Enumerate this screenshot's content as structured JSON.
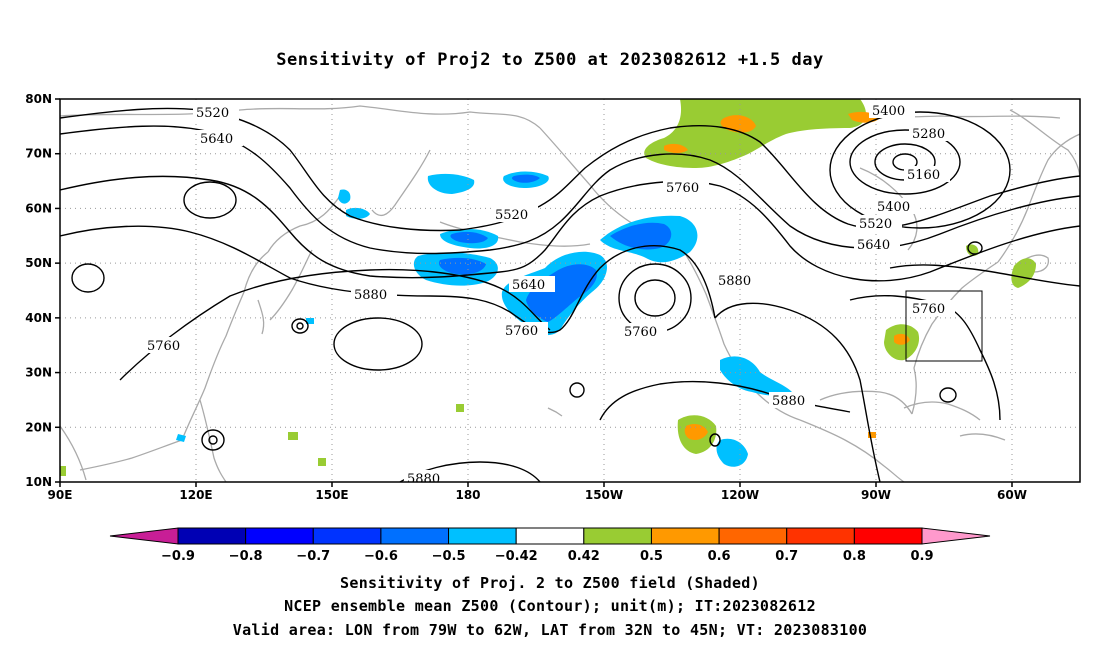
{
  "title": "Sensitivity of Proj2 to Z500 at 2023082612 +1.5 day",
  "map": {
    "lat_ticks": [
      "80N",
      "70N",
      "60N",
      "50N",
      "40N",
      "30N",
      "20N",
      "10N"
    ],
    "lon_ticks": [
      "90E",
      "120E",
      "150E",
      "180",
      "150W",
      "120W",
      "90W",
      "60W"
    ],
    "lon_range_deg_east": [
      90,
      315
    ],
    "lat_range": [
      10,
      80
    ],
    "grid": "dotted",
    "contour_labels": [
      "5520",
      "5640",
      "5760",
      "5880",
      "5400",
      "5280",
      "5160"
    ],
    "valid_box_label": "Valid area",
    "colors": {
      "coastline": "#aaaaaa",
      "contour": "#000000",
      "neg_light": "#00c0ff",
      "neg_mid": "#0080ff",
      "neg_deep": "#0040ff",
      "pos_light": "#99cc33",
      "pos_mid": "#ff9900",
      "pos_deep": "#ff6600"
    }
  },
  "colorbar": {
    "labels": [
      "−0.9",
      "−0.8",
      "−0.7",
      "−0.6",
      "−0.5",
      "−0.42",
      "0.42",
      "0.5",
      "0.6",
      "0.7",
      "0.8",
      "0.9"
    ],
    "colors": [
      "#c81e96",
      "#0000b4",
      "#0000ff",
      "#0033ff",
      "#0070ff",
      "#00c0ff",
      "#ffffff",
      "#99cc33",
      "#ff9900",
      "#ff6600",
      "#ff3300",
      "#ff0000",
      "#ff99cc"
    ]
  },
  "captions": {
    "line1": "Sensitivity of Proj. 2 to Z500 field (Shaded)",
    "line2": "NCEP ensemble mean Z500 (Contour); unit(m); IT:2023082612",
    "line3": "Valid area: LON from 79W to 62W, LAT from 32N to 45N; VT: 2023083100"
  }
}
